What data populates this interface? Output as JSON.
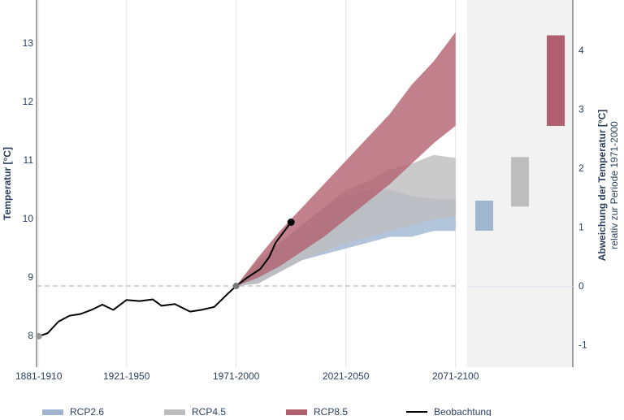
{
  "chart_data": {
    "type": "band",
    "ylabel": "Temperatur [°C]",
    "y2label": "Abweichung der Temperatur [°C]",
    "y2sublabel": "relativ zur Periode 1971-2000",
    "xlim": [
      1880,
      2072.6
    ],
    "xticks": [
      {
        "value": 1881,
        "label": "1881-1910"
      },
      {
        "value": 1921,
        "label": "1921-1950"
      },
      {
        "value": 1971,
        "label": "1971-2000"
      },
      {
        "value": 2021,
        "label": "2021-2050"
      },
      {
        "value": 2071,
        "label": "2071-2100"
      }
    ],
    "ylim": [
      7.47,
      13.75
    ],
    "yticks": [
      8,
      9,
      10,
      11,
      12,
      13
    ],
    "y2lim": [
      -1.37,
      4.87
    ],
    "y2ticks": [
      -1,
      0,
      1,
      2,
      3,
      4
    ],
    "grid": true,
    "reference_line": 8.86,
    "x": [
      1971,
      1981,
      1991,
      2001,
      2011,
      2021,
      2031,
      2041,
      2051,
      2061,
      2071
    ],
    "series": [
      {
        "name": "RCP2.6",
        "color": "#9fb5d0",
        "low": [
          8.86,
          8.9,
          9.1,
          9.3,
          9.4,
          9.5,
          9.6,
          9.7,
          9.7,
          9.8,
          9.8
        ],
        "high": [
          8.86,
          9.2,
          9.6,
          9.9,
          10.2,
          10.4,
          10.5,
          10.5,
          10.4,
          10.35,
          10.35
        ],
        "change": [
          0.95,
          1.46
        ]
      },
      {
        "name": "RCP4.5",
        "color": "#bdbdbd",
        "low": [
          8.86,
          8.9,
          9.1,
          9.3,
          9.45,
          9.6,
          9.7,
          9.8,
          9.9,
          10.0,
          10.05
        ],
        "high": [
          8.86,
          9.3,
          9.6,
          9.9,
          10.2,
          10.5,
          10.65,
          10.85,
          10.95,
          11.1,
          11.05
        ],
        "change": [
          1.36,
          2.2
        ]
      },
      {
        "name": "RCP8.5",
        "color": "#b1606f",
        "low": [
          8.86,
          9.0,
          9.2,
          9.45,
          9.7,
          10.0,
          10.3,
          10.6,
          10.95,
          11.3,
          11.6
        ],
        "high": [
          8.86,
          9.35,
          9.8,
          10.2,
          10.6,
          11.0,
          11.4,
          11.8,
          12.3,
          12.7,
          13.2
        ],
        "change": [
          2.73,
          4.27
        ]
      }
    ],
    "observation": {
      "name": "Beobachtung",
      "color": "#000000",
      "x": [
        1881,
        1885,
        1890,
        1895,
        1900,
        1905,
        1910,
        1915,
        1921,
        1927,
        1933,
        1937,
        1943,
        1950,
        1955,
        1961,
        1967,
        1971,
        1976,
        1982,
        1986,
        1989,
        1993,
        1996
      ],
      "values": [
        8.0,
        8.05,
        8.25,
        8.35,
        8.38,
        8.45,
        8.54,
        8.45,
        8.62,
        8.6,
        8.63,
        8.52,
        8.55,
        8.42,
        8.45,
        8.5,
        8.72,
        8.86,
        9.0,
        9.15,
        9.35,
        9.6,
        9.8,
        9.95
      ]
    }
  }
}
